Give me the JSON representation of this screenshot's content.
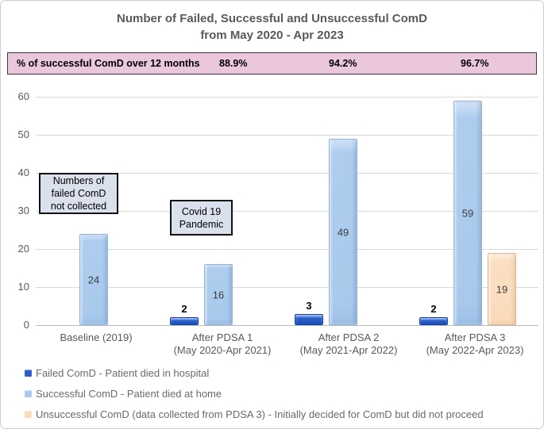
{
  "title": {
    "line1": "Number of Failed, Successful and Unsuccessful ComD",
    "line2": "from May 2020 - Apr 2023"
  },
  "banner": {
    "label": "% of successful ComD over 12 months",
    "percents": [
      "88.9%",
      "94.2%",
      "96.7%"
    ],
    "bg_color": "#eac7dd"
  },
  "chart_data": {
    "type": "bar",
    "title": "Number of Failed, Successful and Unsuccessful ComD from May 2020 - Apr 2023",
    "categories": [
      "Baseline (2019)",
      "After PDSA 1\n(May 2020-Apr 2021)",
      "After PDSA 2\n(May 2021-Apr 2022)",
      "After PDSA 3\n(May 2022-Apr 2023)"
    ],
    "series": [
      {
        "name": "Failed ComD - Patient died in hospital",
        "values": [
          null,
          2,
          3,
          2
        ],
        "color": "#2a5ec9"
      },
      {
        "name": "Successful ComD - Patient died at home",
        "values": [
          24,
          16,
          49,
          59
        ],
        "color": "#a9c9ec"
      },
      {
        "name": "Unsuccessful ComD (data collected from PDSA 3) - Initially decided for ComD but did not proceed",
        "values": [
          null,
          null,
          null,
          19
        ],
        "color": "#fadcbc"
      }
    ],
    "success_rate_over_12_months": [
      "88.9%",
      "94.2%",
      "96.7%"
    ],
    "ylim": [
      0,
      60
    ],
    "yticks": [
      0,
      10,
      20,
      30,
      40,
      50,
      60
    ],
    "grid": true,
    "legend_position": "bottom",
    "annotations": [
      "Numbers of\nfailed ComD\nnot collected",
      "Covid 19\nPandemic"
    ]
  }
}
